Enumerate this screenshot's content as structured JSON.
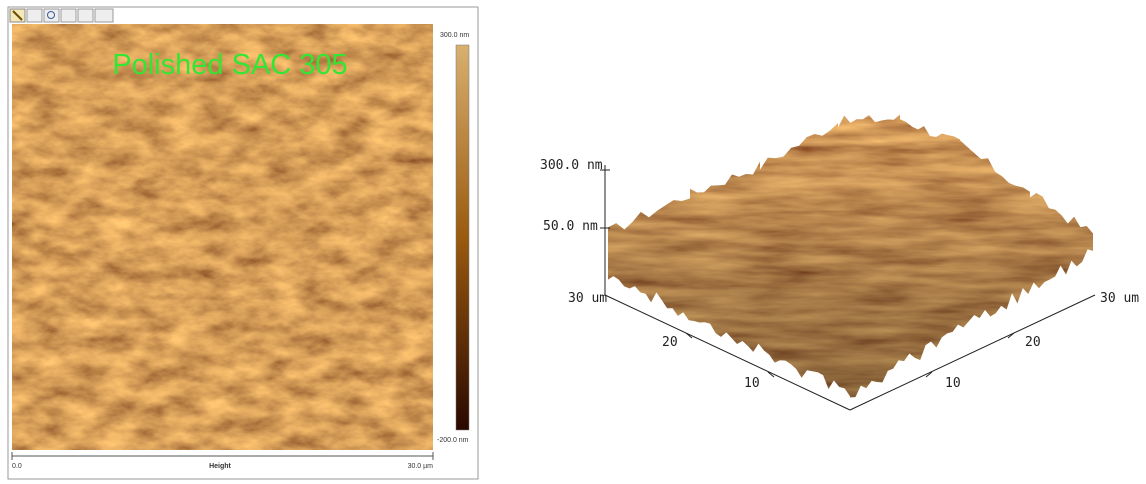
{
  "image_panel": {
    "label": "Polished SAC 305",
    "colorbar": {
      "max_label": "300.0 nm",
      "min_label": "-200.0 nm"
    },
    "x_axis": {
      "start_label": "0.0",
      "title": "Height",
      "end_label": "30.0 µm"
    }
  },
  "surface_panel": {
    "z_labels": [
      "300.0 nm",
      "50.0 nm"
    ],
    "left_axis": {
      "end_label": "30 um",
      "ticks": [
        "20",
        "10"
      ]
    },
    "right_axis": {
      "end_label": "30 um",
      "ticks": [
        "20",
        "10"
      ]
    }
  }
}
